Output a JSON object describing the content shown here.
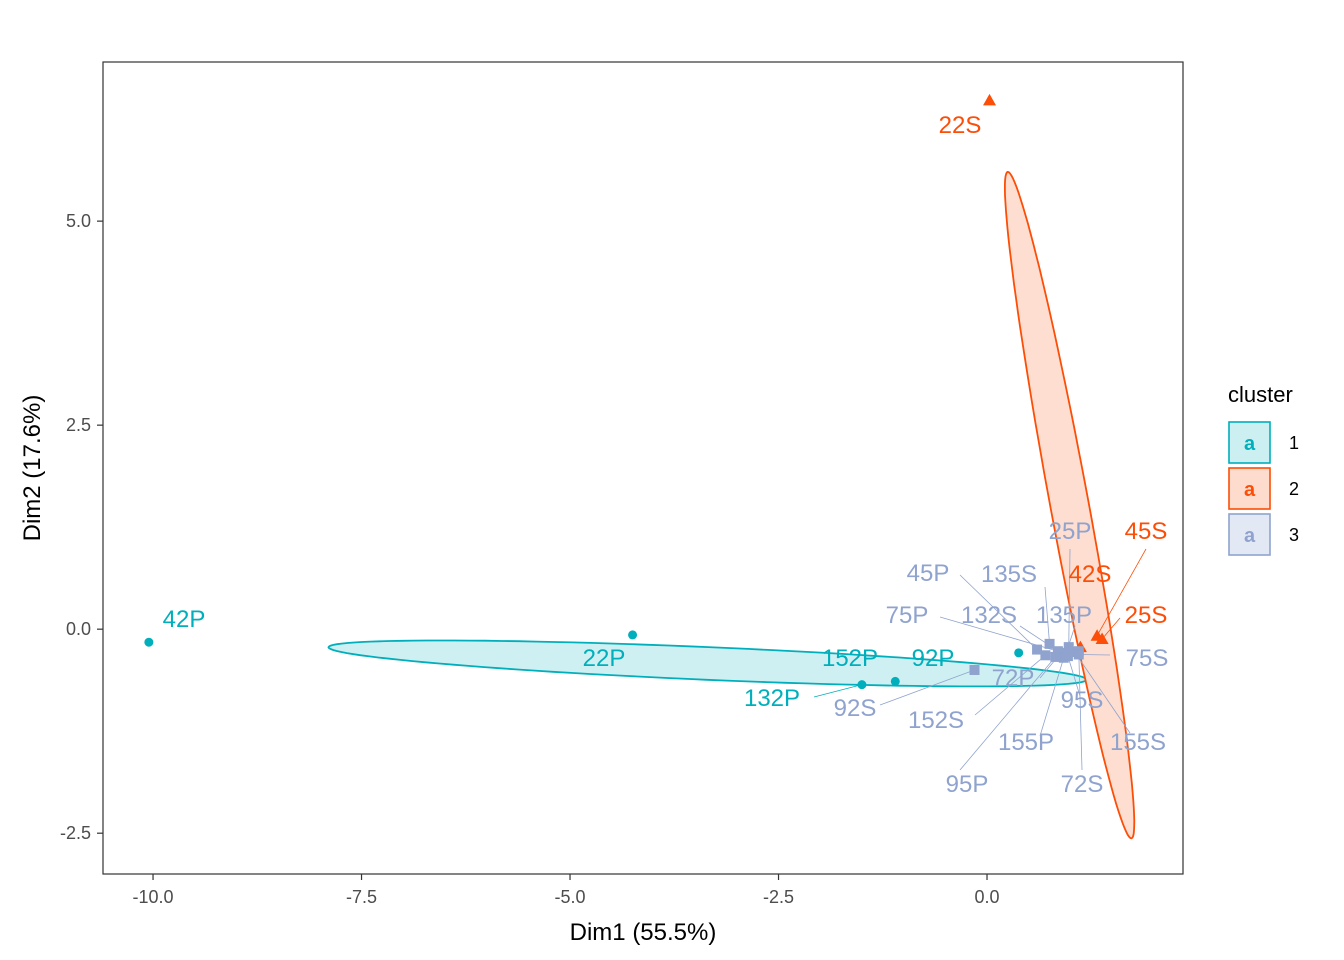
{
  "chart_data": {
    "type": "scatter",
    "xlabel": "Dim1 (55.5%)",
    "ylabel": "Dim2 (17.6%)",
    "xlim": [
      -10.6,
      2.35
    ],
    "ylim": [
      -3.0,
      6.95
    ],
    "x_ticks": [
      -10.0,
      -7.5,
      -5.0,
      -2.5,
      0.0
    ],
    "x_tick_labels": [
      "-10.0",
      "-7.5",
      "-5.0",
      "-2.5",
      "0.0"
    ],
    "y_ticks": [
      -2.5,
      0.0,
      2.5,
      5.0
    ],
    "y_tick_labels": [
      "-2.5",
      "0.0",
      "2.5",
      "5.0"
    ],
    "grid": false,
    "legend": {
      "title": "cluster",
      "placement": "right",
      "key_glyph": "a",
      "entries": [
        {
          "label": "1",
          "cluster": 1
        },
        {
          "label": "2",
          "cluster": 2
        },
        {
          "label": "3",
          "cluster": 3
        }
      ]
    },
    "colors": {
      "1": "#00AFBB",
      "2": "#FC4E07",
      "3": "#8FA3CE"
    },
    "fills": {
      "1": "#CCEFF1",
      "2": "#FDDCCD",
      "3": "#E3E8F5"
    },
    "shapes": {
      "1": "circle",
      "2": "triangle",
      "3": "square"
    },
    "series": [
      {
        "cluster": 1,
        "points": [
          {
            "label": "42P",
            "x": -10.05,
            "y": -0.16
          },
          {
            "label": "22P",
            "x": -4.25,
            "y": -0.07
          },
          {
            "label": "132P",
            "x": -1.5,
            "y": -0.68
          },
          {
            "label": "152P",
            "x": -1.1,
            "y": -0.64
          },
          {
            "label": "92P",
            "x": 0.38,
            "y": -0.29
          }
        ],
        "ellipse": {
          "center": [
            -3.35,
            -0.42
          ],
          "semi_major": 4.55,
          "semi_minor": 0.2,
          "angle_deg": -2.5
        }
      },
      {
        "cluster": 2,
        "points": [
          {
            "label": "22S",
            "x": 0.03,
            "y": 6.48
          },
          {
            "label": "45S",
            "x": 1.32,
            "y": -0.08
          },
          {
            "label": "42S",
            "x": 1.12,
            "y": -0.22
          },
          {
            "label": "25S",
            "x": 1.38,
            "y": -0.12
          }
        ],
        "ellipse": {
          "center": [
            0.99,
            1.52
          ],
          "semi_major": 4.15,
          "semi_minor": 0.23,
          "angle_deg": -79.7
        }
      },
      {
        "cluster": 3,
        "points": [
          {
            "label": "45P",
            "x": 0.6,
            "y": -0.25
          },
          {
            "label": "135S",
            "x": 0.75,
            "y": -0.18
          },
          {
            "label": "25P",
            "x": 0.98,
            "y": -0.22
          },
          {
            "label": "75P",
            "x": 0.85,
            "y": -0.27
          },
          {
            "label": "132S",
            "x": 0.9,
            "y": -0.3
          },
          {
            "label": "135P",
            "x": 0.95,
            "y": -0.29
          },
          {
            "label": "72P",
            "x": 0.88,
            "y": -0.3
          },
          {
            "label": "95S",
            "x": 0.97,
            "y": -0.33
          },
          {
            "label": "152S",
            "x": 0.7,
            "y": -0.32
          },
          {
            "label": "92S",
            "x": -0.15,
            "y": -0.5
          },
          {
            "label": "155P",
            "x": 0.92,
            "y": -0.35
          },
          {
            "label": "155S",
            "x": 1.05,
            "y": -0.28
          },
          {
            "label": "95P",
            "x": 0.82,
            "y": -0.34
          },
          {
            "label": "72S",
            "x": 1.1,
            "y": -0.27
          },
          {
            "label": "75S",
            "x": 1.1,
            "y": -0.31
          }
        ]
      }
    ]
  }
}
